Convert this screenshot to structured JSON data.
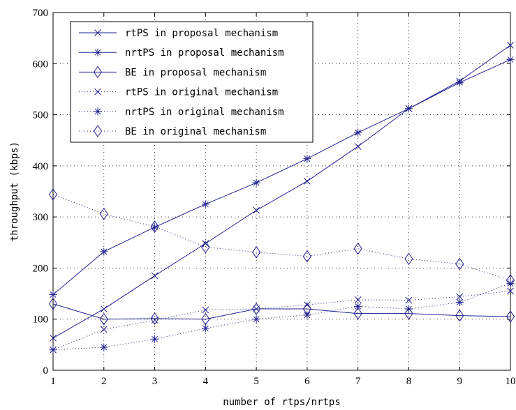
{
  "chart_data": {
    "type": "line",
    "title": "",
    "xlabel": "number of rtps/nrtps",
    "ylabel": "throughput (kbps)",
    "xlim": [
      1,
      10
    ],
    "ylim": [
      0,
      700
    ],
    "x": [
      1,
      2,
      3,
      4,
      5,
      6,
      7,
      8,
      9,
      10
    ],
    "xticks": [
      "1",
      "2",
      "3",
      "4",
      "5",
      "6",
      "7",
      "8",
      "9",
      "10"
    ],
    "yticks": [
      "0",
      "100",
      "200",
      "300",
      "400",
      "500",
      "600",
      "700"
    ],
    "grid": true,
    "legend_position": "top-left",
    "color": "#1f1f8f",
    "series": [
      {
        "name": "rtPS in proposal mechanism",
        "line": "solid",
        "marker": "x",
        "values": [
          63,
          120,
          185,
          248,
          313,
          370,
          438,
          512,
          566,
          636
        ]
      },
      {
        "name": "nrtPS in proposal mechanism",
        "line": "solid",
        "marker": "star",
        "values": [
          148,
          232,
          280,
          325,
          367,
          414,
          465,
          512,
          563,
          608
        ]
      },
      {
        "name": "BE in proposal mechanism",
        "line": "solid",
        "marker": "diamond",
        "values": [
          130,
          100,
          101,
          100,
          120,
          120,
          111,
          111,
          107,
          105
        ]
      },
      {
        "name": "rtPS in original mechanism",
        "line": "dotted",
        "marker": "x",
        "values": [
          40,
          80,
          98,
          118,
          120,
          128,
          138,
          137,
          144,
          155
        ]
      },
      {
        "name": "nrtPS in original mechanism",
        "line": "dotted",
        "marker": "star",
        "values": [
          40,
          45,
          61,
          82,
          100,
          108,
          125,
          120,
          133,
          170
        ]
      },
      {
        "name": "BE in original mechanism",
        "line": "dotted",
        "marker": "diamond",
        "values": [
          344,
          306,
          281,
          241,
          231,
          223,
          238,
          218,
          208,
          176
        ]
      }
    ]
  }
}
